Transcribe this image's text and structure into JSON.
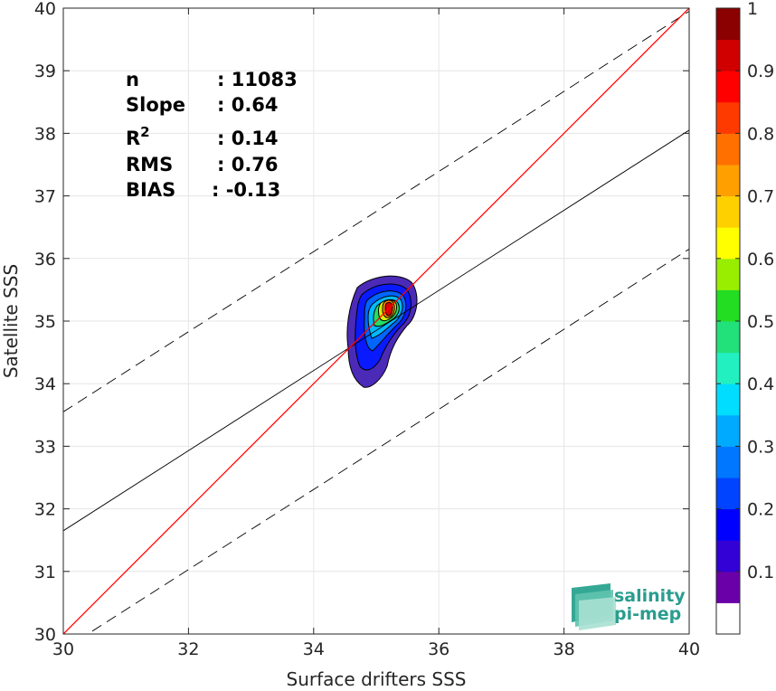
{
  "chart_data": {
    "type": "scatter-density-contour",
    "xlabel": "Surface drifters SSS",
    "ylabel": "Satellite SSS",
    "xlim": [
      30,
      40
    ],
    "ylim": [
      30,
      40
    ],
    "xticks": [
      "30",
      "32",
      "34",
      "36",
      "38",
      "40"
    ],
    "yticks": [
      "30",
      "31",
      "32",
      "33",
      "34",
      "35",
      "36",
      "37",
      "38",
      "39",
      "40"
    ],
    "grid": true,
    "stats": [
      {
        "label": "n",
        "value": ": 11083"
      },
      {
        "label": "Slope",
        "value": ": 0.64"
      },
      {
        "label": "R",
        "sup": "2",
        "value": ": 0.14"
      },
      {
        "label": "RMS",
        "value": ": 0.76"
      },
      {
        "label": "BIAS",
        "value": ": -0.13"
      }
    ],
    "lines": {
      "one_to_one": {
        "slope": 1,
        "intercept": 0,
        "color": "#ff0000"
      },
      "regression": {
        "slope": 0.64,
        "x0": 30,
        "y0": 31.65,
        "color": "#000000"
      },
      "rms_envelope_offset": 1.9
    },
    "density_peak": {
      "x": 35.2,
      "y": 35.2
    },
    "colorbar": {
      "ticks": [
        "0.1",
        "0.2",
        "0.3",
        "0.4",
        "0.5",
        "0.6",
        "0.7",
        "0.8",
        "0.9",
        "1"
      ],
      "levels": [
        "#ffffff",
        "#6a00a8",
        "#3300d6",
        "#0000ff",
        "#0044ff",
        "#0077ff",
        "#00aaff",
        "#00ddff",
        "#22f0c0",
        "#22e07a",
        "#22dd22",
        "#99ee00",
        "#ffff00",
        "#ffd000",
        "#ffa000",
        "#ff7000",
        "#ff3a00",
        "#ff0000",
        "#d00000",
        "#8b0000"
      ]
    }
  },
  "logo": {
    "line1": "salinity",
    "line2": "pi-mep"
  }
}
